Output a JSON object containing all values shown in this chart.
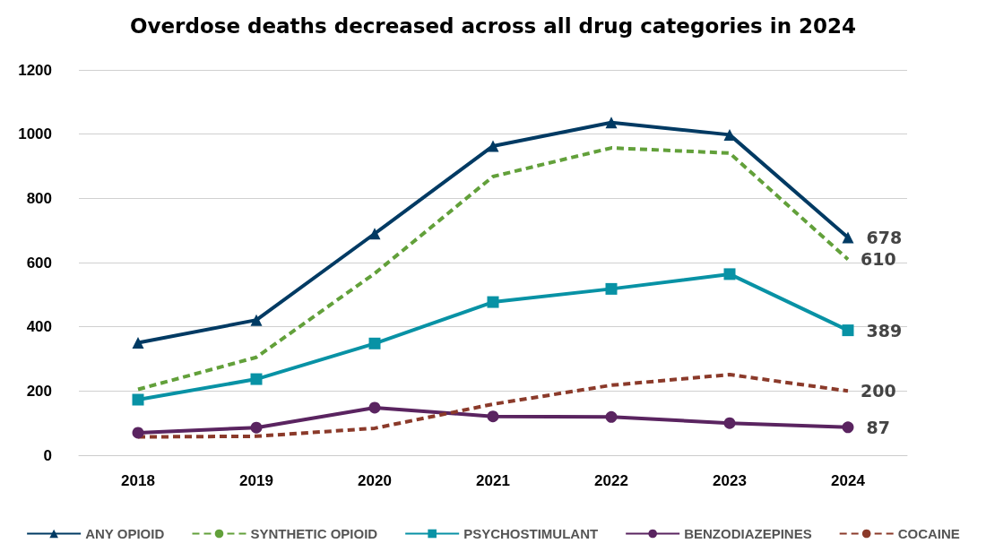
{
  "chart_data": {
    "type": "line",
    "title": "Overdose deaths decreased across all drug categories in 2024",
    "categories": [
      "2018",
      "2019",
      "2020",
      "2021",
      "2022",
      "2023",
      "2024"
    ],
    "ylim": [
      0,
      1200
    ],
    "yticks": [
      0,
      200,
      400,
      600,
      800,
      1000,
      1200
    ],
    "grid": "y",
    "legend": "bottom",
    "series": [
      {
        "name": "ANY OPIOID",
        "color": "#003a63",
        "marker": "triangle",
        "line_style": "solid",
        "values": [
          350,
          421,
          690,
          963,
          1036,
          998,
          678
        ],
        "value_labels": [
          null,
          null,
          null,
          null,
          null,
          null,
          "678"
        ]
      },
      {
        "name": "SYNTHETIC OPIOID",
        "color": "#62a03a",
        "marker": "none",
        "line_style": "dashed",
        "values": [
          205,
          305,
          566,
          868,
          957,
          941,
          610
        ],
        "value_labels": [
          null,
          null,
          null,
          null,
          null,
          null,
          "610"
        ]
      },
      {
        "name": "PSYCHOSTIMULANT",
        "color": "#0892a5",
        "marker": "square",
        "line_style": "solid",
        "values": [
          173,
          237,
          348,
          477,
          518,
          564,
          389
        ],
        "value_labels": [
          null,
          null,
          null,
          null,
          null,
          null,
          "389"
        ]
      },
      {
        "name": "BENZODIAZEPINES",
        "color": "#5a2460",
        "marker": "circle",
        "line_style": "solid",
        "values": [
          70,
          86,
          148,
          121,
          119,
          100,
          87
        ],
        "value_labels": [
          null,
          null,
          null,
          null,
          null,
          null,
          "87"
        ]
      },
      {
        "name": "COCAINE",
        "color": "#8b3a2a",
        "marker": "none",
        "line_style": "dashed",
        "values": [
          57,
          59,
          84,
          159,
          218,
          251,
          200
        ],
        "value_labels": [
          null,
          null,
          null,
          null,
          null,
          null,
          "200"
        ]
      }
    ]
  }
}
